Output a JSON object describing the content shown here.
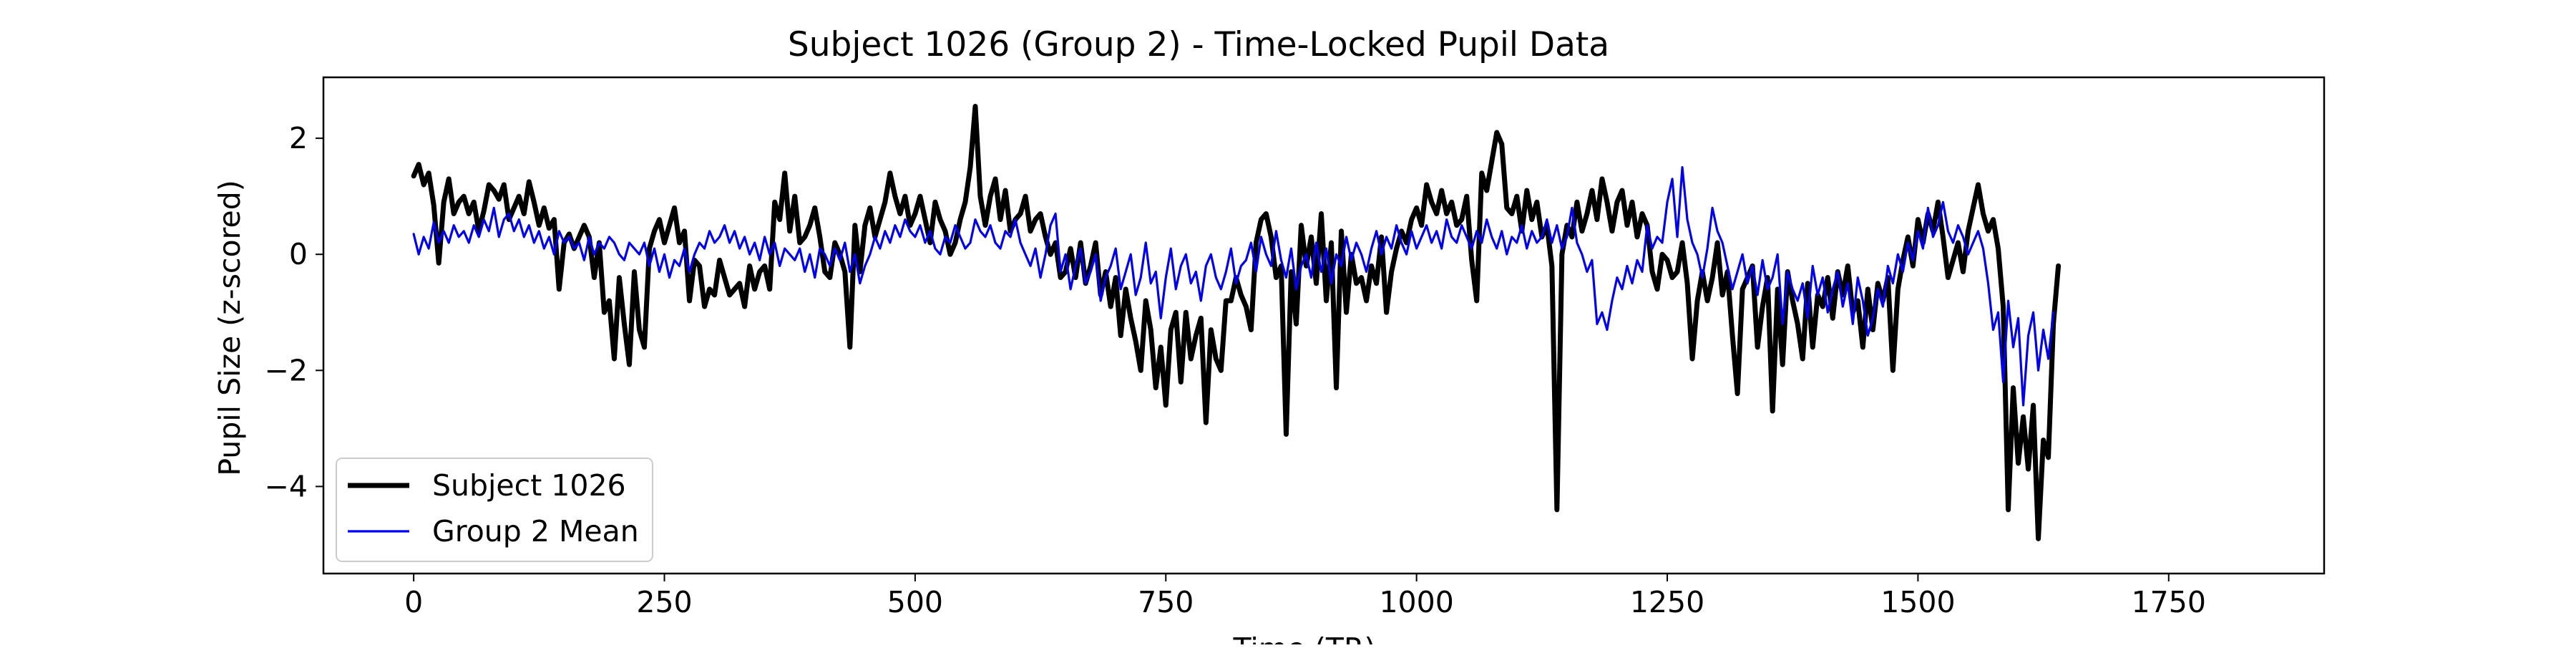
{
  "chart_data": {
    "type": "line",
    "title": "Subject 1026 (Group 2) - Time-Locked Pupil Data",
    "xlabel": "Time (TR)",
    "ylabel": "Pupil Size (z-scored)",
    "xlim": [
      -90,
      1905
    ],
    "ylim": [
      -5.5,
      3.05
    ],
    "xticks": [
      0,
      250,
      500,
      750,
      1000,
      1250,
      1500,
      1750
    ],
    "yticks": [
      -4,
      -2,
      0,
      2
    ],
    "xtick_labels": [
      "0",
      "250",
      "500",
      "750",
      "1000",
      "1250",
      "1500",
      "1750"
    ],
    "ytick_labels": [
      "−4",
      "−2",
      "0",
      "2"
    ],
    "legend_position": "lower-left",
    "series": [
      {
        "name": "Subject 1026",
        "color": "#000000",
        "line_style": "thick",
        "x_start": 0,
        "x_step": 5,
        "values": [
          1.35,
          1.55,
          1.2,
          1.4,
          0.85,
          -0.15,
          0.9,
          1.3,
          0.7,
          0.9,
          1.0,
          0.7,
          0.9,
          0.4,
          0.75,
          1.2,
          1.1,
          0.95,
          1.2,
          0.6,
          0.8,
          1.0,
          0.7,
          1.25,
          0.9,
          0.5,
          0.8,
          0.45,
          0.6,
          -0.6,
          0.2,
          0.35,
          0.1,
          0.3,
          0.5,
          0.3,
          -0.4,
          0.2,
          -1.0,
          -0.8,
          -1.8,
          -0.4,
          -1.2,
          -1.9,
          -0.3,
          -1.3,
          -1.6,
          0.1,
          0.4,
          0.6,
          0.2,
          0.5,
          0.8,
          0.2,
          0.4,
          -0.8,
          -0.1,
          -0.2,
          -0.9,
          -0.6,
          -0.7,
          -0.1,
          -0.4,
          -0.7,
          -0.6,
          -0.5,
          -0.9,
          -0.2,
          -0.6,
          -0.3,
          -0.2,
          -0.6,
          0.9,
          0.6,
          1.4,
          0.4,
          1.0,
          0.2,
          0.3,
          0.5,
          0.8,
          0.3,
          -0.3,
          -0.4,
          0.2,
          0.0,
          -0.3,
          -1.6,
          0.5,
          -0.3,
          0.5,
          0.8,
          0.3,
          0.6,
          0.9,
          1.4,
          1.0,
          0.7,
          1.0,
          0.5,
          0.7,
          1.0,
          0.6,
          0.2,
          0.9,
          0.6,
          0.4,
          0.0,
          0.2,
          0.6,
          0.9,
          1.5,
          2.55,
          1.0,
          0.5,
          1.0,
          1.3,
          0.6,
          1.1,
          0.4,
          0.6,
          0.7,
          1.0,
          0.4,
          0.6,
          0.7,
          0.3,
          0.0,
          0.2,
          -0.4,
          -0.3,
          0.1,
          -0.4,
          0.2,
          -0.5,
          -0.2,
          0.2,
          -0.7,
          -0.3,
          -0.9,
          -0.4,
          -1.4,
          -0.6,
          -1.1,
          -1.5,
          -2.0,
          -0.8,
          -1.3,
          -2.3,
          -1.6,
          -2.6,
          -1.3,
          -1.0,
          -2.2,
          -1.0,
          -1.8,
          -1.4,
          -1.1,
          -2.9,
          -1.3,
          -1.8,
          -2.0,
          -0.8,
          -0.8,
          -0.4,
          -0.7,
          -0.9,
          -1.3,
          0.2,
          0.6,
          0.7,
          0.3,
          -0.4,
          -0.2,
          -3.1,
          -0.3,
          -1.2,
          0.5,
          -0.2,
          0.3,
          -0.5,
          0.7,
          -0.8,
          0.2,
          -2.3,
          0.4,
          -1.0,
          0.0,
          -0.5,
          -0.4,
          -0.8,
          -0.2,
          -0.5,
          0.3,
          -1.0,
          -0.3,
          0.1,
          0.4,
          0.2,
          0.6,
          0.8,
          0.5,
          1.2,
          0.9,
          0.7,
          1.1,
          0.7,
          0.9,
          0.5,
          0.6,
          1.0,
          -0.1,
          -0.8,
          1.4,
          1.1,
          1.6,
          2.1,
          1.9,
          0.8,
          0.7,
          1.0,
          0.4,
          1.1,
          0.6,
          0.9,
          0.3,
          0.5,
          -0.2,
          -4.4,
          0.0,
          0.5,
          0.3,
          0.9,
          0.4,
          0.7,
          1.1,
          0.6,
          1.3,
          0.9,
          0.4,
          0.9,
          1.1,
          0.5,
          0.9,
          0.3,
          0.7,
          0.5,
          -0.3,
          -0.6,
          0.0,
          -0.1,
          -0.4,
          -0.3,
          0.2,
          -0.5,
          -1.8,
          -0.8,
          -0.3,
          -0.8,
          -0.4,
          0.2,
          -0.7,
          -0.3,
          -1.4,
          -2.4,
          -0.6,
          -0.4,
          -0.2,
          -1.6,
          -0.9,
          -0.4,
          -2.7,
          -0.6,
          -1.9,
          -0.3,
          -0.8,
          -1.2,
          -1.8,
          -0.5,
          -1.6,
          -0.7,
          -0.9,
          -0.4,
          -1.1,
          -0.3,
          -0.7,
          -0.2,
          -1.0,
          -0.8,
          -1.6,
          -0.6,
          -1.3,
          -0.5,
          -0.8,
          -0.4,
          -2.0,
          -0.6,
          -0.1,
          0.3,
          -0.2,
          0.6,
          0.2,
          0.7,
          0.4,
          0.9,
          0.3,
          -0.4,
          -0.1,
          0.2,
          -0.3,
          0.4,
          0.8,
          1.2,
          0.7,
          0.4,
          0.6,
          0.1,
          -0.9,
          -4.4,
          -2.3,
          -3.6,
          -2.8,
          -3.7,
          -2.6,
          -4.9,
          -3.2,
          -3.5,
          -1.2,
          -0.2
        ]
      },
      {
        "name": "Group 2 Mean",
        "color": "#0000ee",
        "line_style": "thin",
        "x_start": 0,
        "x_step": 5,
        "values": [
          0.35,
          0.0,
          0.3,
          0.1,
          0.55,
          0.2,
          0.4,
          0.2,
          0.5,
          0.3,
          0.4,
          0.2,
          0.5,
          0.3,
          0.6,
          0.4,
          0.8,
          0.3,
          0.6,
          0.7,
          0.4,
          0.6,
          0.3,
          0.5,
          0.2,
          0.4,
          0.1,
          0.3,
          0.0,
          0.4,
          0.2,
          0.3,
          0.1,
          0.2,
          -0.1,
          0.3,
          0.0,
          0.2,
          0.1,
          0.3,
          0.2,
          0.0,
          -0.1,
          0.2,
          0.1,
          0.0,
          0.2,
          -0.2,
          0.1,
          -0.3,
          0.0,
          -0.4,
          -0.1,
          -0.2,
          0.1,
          -0.3,
          0.0,
          0.2,
          0.1,
          0.4,
          0.2,
          0.3,
          0.5,
          0.2,
          0.4,
          0.1,
          0.3,
          0.0,
          0.2,
          -0.1,
          0.3,
          0.0,
          0.2,
          -0.2,
          0.1,
          0.0,
          -0.1,
          0.1,
          -0.3,
          0.0,
          -0.4,
          0.1,
          0.0,
          -0.2,
          0.1,
          -0.1,
          0.2,
          -0.3,
          0.0,
          -0.5,
          -0.2,
          0.0,
          0.3,
          0.1,
          0.4,
          0.2,
          0.5,
          0.3,
          0.6,
          0.4,
          0.3,
          0.5,
          0.2,
          0.4,
          0.1,
          0.0,
          0.3,
          0.2,
          0.5,
          0.3,
          0.1,
          0.2,
          0.6,
          0.4,
          0.3,
          0.5,
          0.2,
          0.1,
          0.4,
          0.3,
          0.6,
          0.2,
          0.0,
          -0.2,
          0.1,
          -0.4,
          0.0,
          0.5,
          0.7,
          -0.3,
          0.0,
          -0.6,
          -0.2,
          0.1,
          -0.5,
          -0.3,
          0.0,
          -0.8,
          -0.4,
          -0.2,
          0.1,
          -0.6,
          -0.3,
          0.0,
          -0.7,
          -0.4,
          0.2,
          -0.5,
          -0.3,
          -1.1,
          -0.4,
          0.1,
          -0.6,
          -0.2,
          0.0,
          -0.5,
          -0.3,
          -0.8,
          -0.2,
          0.0,
          -0.4,
          -0.6,
          -0.3,
          0.1,
          -0.5,
          -0.2,
          -0.1,
          0.2,
          -0.3,
          0.3,
          0.0,
          -0.2,
          0.4,
          -0.1,
          -0.4,
          0.1,
          -0.6,
          -0.2,
          0.0,
          -0.4,
          0.2,
          -0.3,
          0.1,
          -0.5,
          0.0,
          -0.2,
          0.3,
          -0.1,
          0.2,
          0.0,
          -0.3,
          0.1,
          0.4,
          0.0,
          0.3,
          0.1,
          0.5,
          0.2,
          0.0,
          0.4,
          0.1,
          0.3,
          0.5,
          0.2,
          0.4,
          0.1,
          0.6,
          0.3,
          0.2,
          0.5,
          0.3,
          0.1,
          0.4,
          0.2,
          0.6,
          0.3,
          0.1,
          0.4,
          0.0,
          0.3,
          0.2,
          0.5,
          0.1,
          0.4,
          0.2,
          0.3,
          0.6,
          0.2,
          0.5,
          0.1,
          0.3,
          0.8,
          0.2,
          0.0,
          -0.3,
          -0.1,
          -1.2,
          -1.0,
          -1.3,
          -0.8,
          -0.4,
          -0.6,
          -0.2,
          -0.5,
          -0.1,
          -0.3,
          0.5,
          0.1,
          0.3,
          0.2,
          0.9,
          1.3,
          0.3,
          1.5,
          0.6,
          0.2,
          0.0,
          -0.4,
          0.1,
          0.8,
          0.4,
          0.2,
          -0.2,
          -0.6,
          -0.3,
          0.0,
          -0.5,
          -0.2,
          -0.7,
          -0.1,
          -0.6,
          -0.4,
          0.0,
          -1.2,
          -0.3,
          -0.6,
          -0.8,
          -0.5,
          -1.1,
          -0.2,
          -0.7,
          -0.4,
          -1.0,
          -0.6,
          -0.3,
          -0.9,
          -0.5,
          -1.2,
          -0.4,
          -0.8,
          -1.4,
          -1.1,
          -0.6,
          -0.9,
          -0.2,
          -0.5,
          0.0,
          -0.3,
          0.2,
          -0.1,
          0.4,
          0.1,
          0.8,
          0.3,
          0.5,
          0.9,
          0.4,
          0.2,
          0.5,
          0.3,
          0.0,
          0.2,
          0.4,
          0.1,
          -0.5,
          -1.3,
          -1.0,
          -2.2,
          -0.8,
          -1.6,
          -1.1,
          -2.6,
          -1.4,
          -1.0,
          -2.0,
          -1.3,
          -1.8,
          -1.0
        ]
      }
    ]
  }
}
